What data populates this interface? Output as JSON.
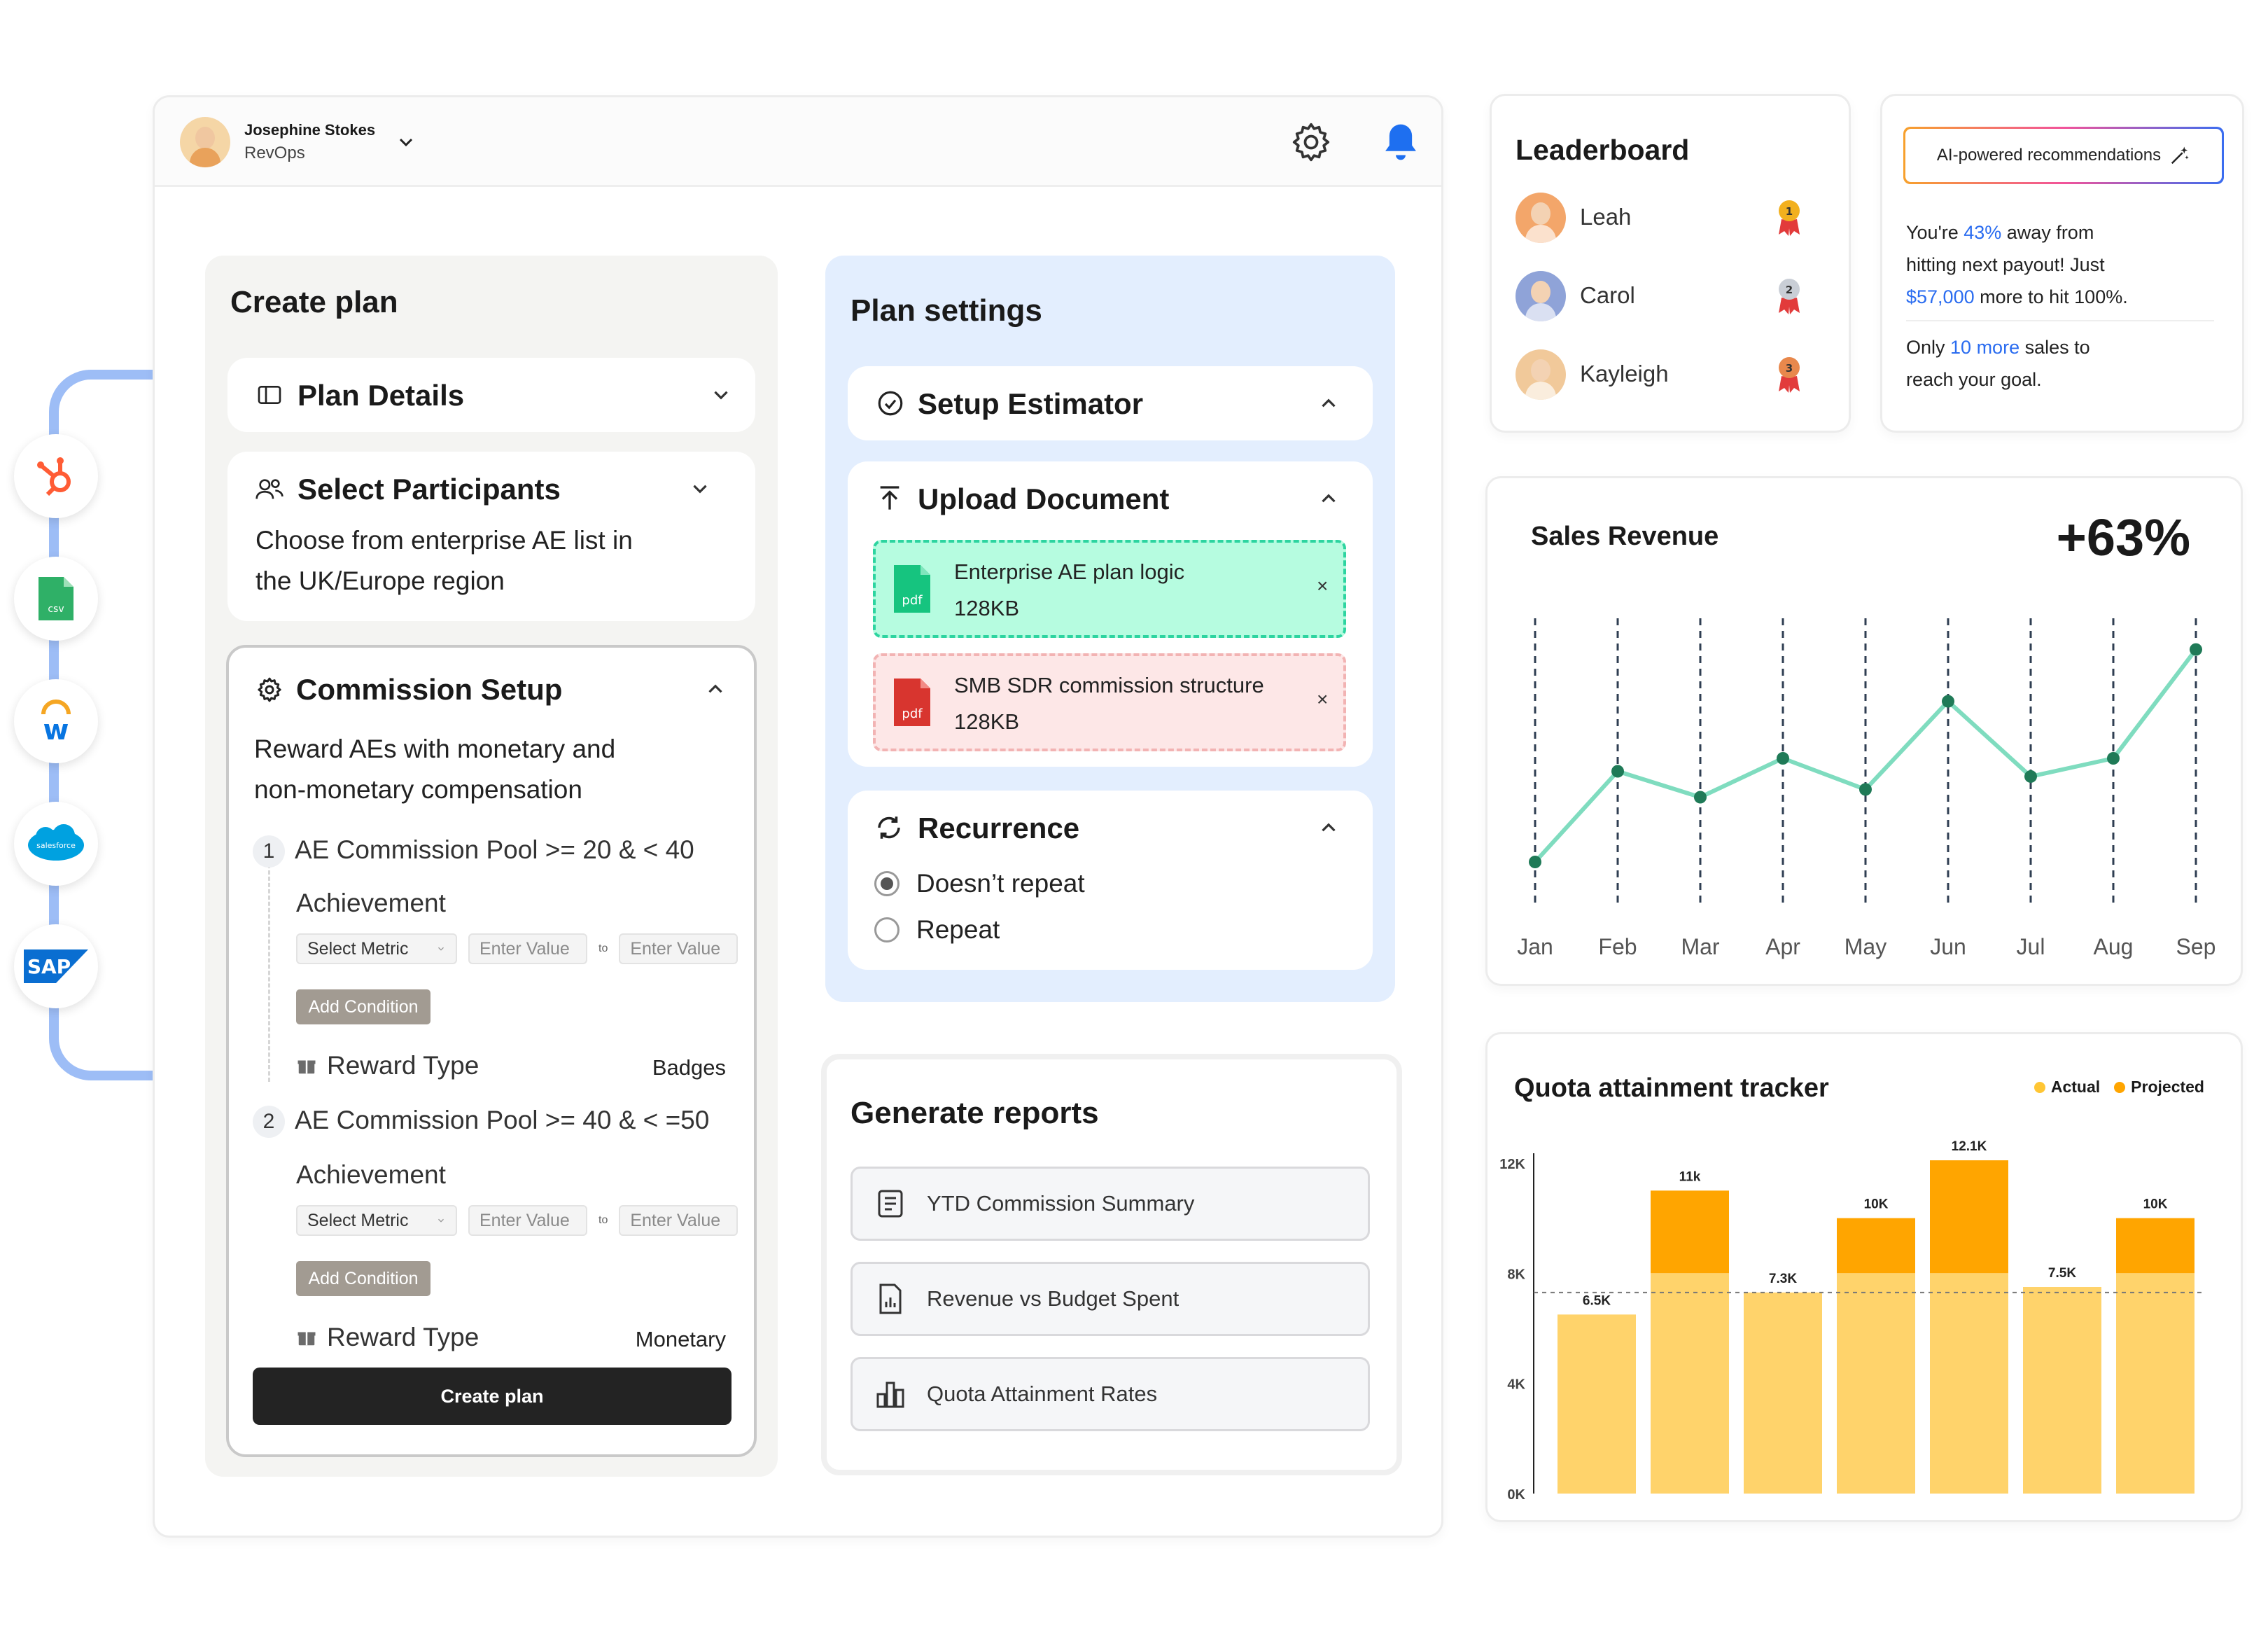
{
  "user": {
    "name": "Josephine Stokes",
    "role": "RevOps"
  },
  "integrations": [
    "hubspot-icon",
    "csv-icon",
    "workday-icon",
    "salesforce-icon",
    "sap-icon"
  ],
  "create_plan": {
    "title": "Create plan",
    "plan_details": "Plan Details",
    "select_participants": {
      "label": "Select Participants",
      "desc_line1": "Choose from enterprise AE list in",
      "desc_line2": "the UK/Europe region"
    },
    "commission_setup": {
      "label": "Commission Setup",
      "desc_line1": "Reward AEs with monetary and",
      "desc_line2": "non-monetary compensation",
      "pools": [
        {
          "num": "1",
          "label": "AE Commission Pool >= 20 & < 40",
          "achievement": "Achievement",
          "metric": "Select Metric",
          "value_placeholder": "Enter Value",
          "to": "to",
          "add_condition": "Add Condition",
          "reward_type": "Reward Type",
          "reward_value": "Badges"
        },
        {
          "num": "2",
          "label": "AE Commission Pool >= 40 & < =50",
          "achievement": "Achievement",
          "metric": "Select Metric",
          "value_placeholder": "Enter Value",
          "to": "to",
          "add_condition": "Add Condition",
          "reward_type": "Reward Type",
          "reward_value": "Monetary"
        }
      ]
    },
    "create_button": "Create plan"
  },
  "plan_settings": {
    "title": "Plan settings",
    "setup_estimator": "Setup Estimator",
    "upload_document": "Upload Document",
    "files": [
      {
        "name": "Enterprise AE plan logic",
        "size": "128KB",
        "ext": "pdf",
        "color": "#16c47f"
      },
      {
        "name": "SMB SDR commission structure",
        "size": "128KB",
        "ext": "pdf",
        "color": "#d8352f"
      }
    ],
    "close_glyph": "×",
    "recurrence": {
      "label": "Recurrence",
      "options": [
        "Doesn’t repeat",
        "Repeat"
      ],
      "selected": 0
    }
  },
  "reports": {
    "title": "Generate reports",
    "items": [
      "YTD Commission Summary",
      "Revenue vs Budget Spent",
      "Quota Attainment Rates"
    ]
  },
  "leaderboard": {
    "title": "Leaderboard",
    "entries": [
      {
        "name": "Leah",
        "rank": "1",
        "medal": "#f2b01e"
      },
      {
        "name": "Carol",
        "rank": "2",
        "medal": "#c9ced6"
      },
      {
        "name": "Kayleigh",
        "rank": "3",
        "medal": "#e8884c"
      }
    ]
  },
  "ai": {
    "button": "AI-powered recommendations",
    "line1_a": "You're ",
    "line1_pct": "43%",
    "line1_b": " away from",
    "line2": "hitting next payout! Just",
    "line3_amt": "$57,000",
    "line3_b": " more to hit 100%.",
    "line4_a": "Only ",
    "line4_n": "10 more",
    "line4_b": " sales to",
    "line5": "reach your goal.",
    "accent": "#2a6cf0"
  },
  "chart_data": [
    {
      "type": "line",
      "title": "Sales Revenue",
      "headline": "+63%",
      "categories": [
        "Jan",
        "Feb",
        "Mar",
        "Apr",
        "May",
        "Jun",
        "Jul",
        "Aug",
        "Sep"
      ],
      "values": [
        10,
        45,
        35,
        50,
        38,
        72,
        43,
        50,
        92
      ],
      "ylim": [
        0,
        100
      ],
      "line_color": "#7fdcbf",
      "point_color": "#1f7a57"
    },
    {
      "type": "bar",
      "title": "Quota attainment tracker",
      "legend": [
        {
          "name": "Actual",
          "color": "#ffd36b"
        },
        {
          "name": "Projected",
          "color": "#ffa500"
        }
      ],
      "yticks": [
        "0K",
        "4K",
        "8K",
        "12K"
      ],
      "ylim": [
        0,
        12
      ],
      "target": 7.3,
      "series": [
        {
          "name": "Actual",
          "values": [
            6.5,
            8,
            7.3,
            8,
            8,
            7.5,
            8
          ]
        },
        {
          "name": "Projected",
          "values": [
            6.5,
            11,
            7.3,
            10,
            12.1,
            7.5,
            10
          ]
        }
      ],
      "data_labels": [
        "6.5K",
        "11k",
        "7.3K",
        "10K",
        "12.1K",
        "7.5K",
        "10K"
      ]
    }
  ]
}
